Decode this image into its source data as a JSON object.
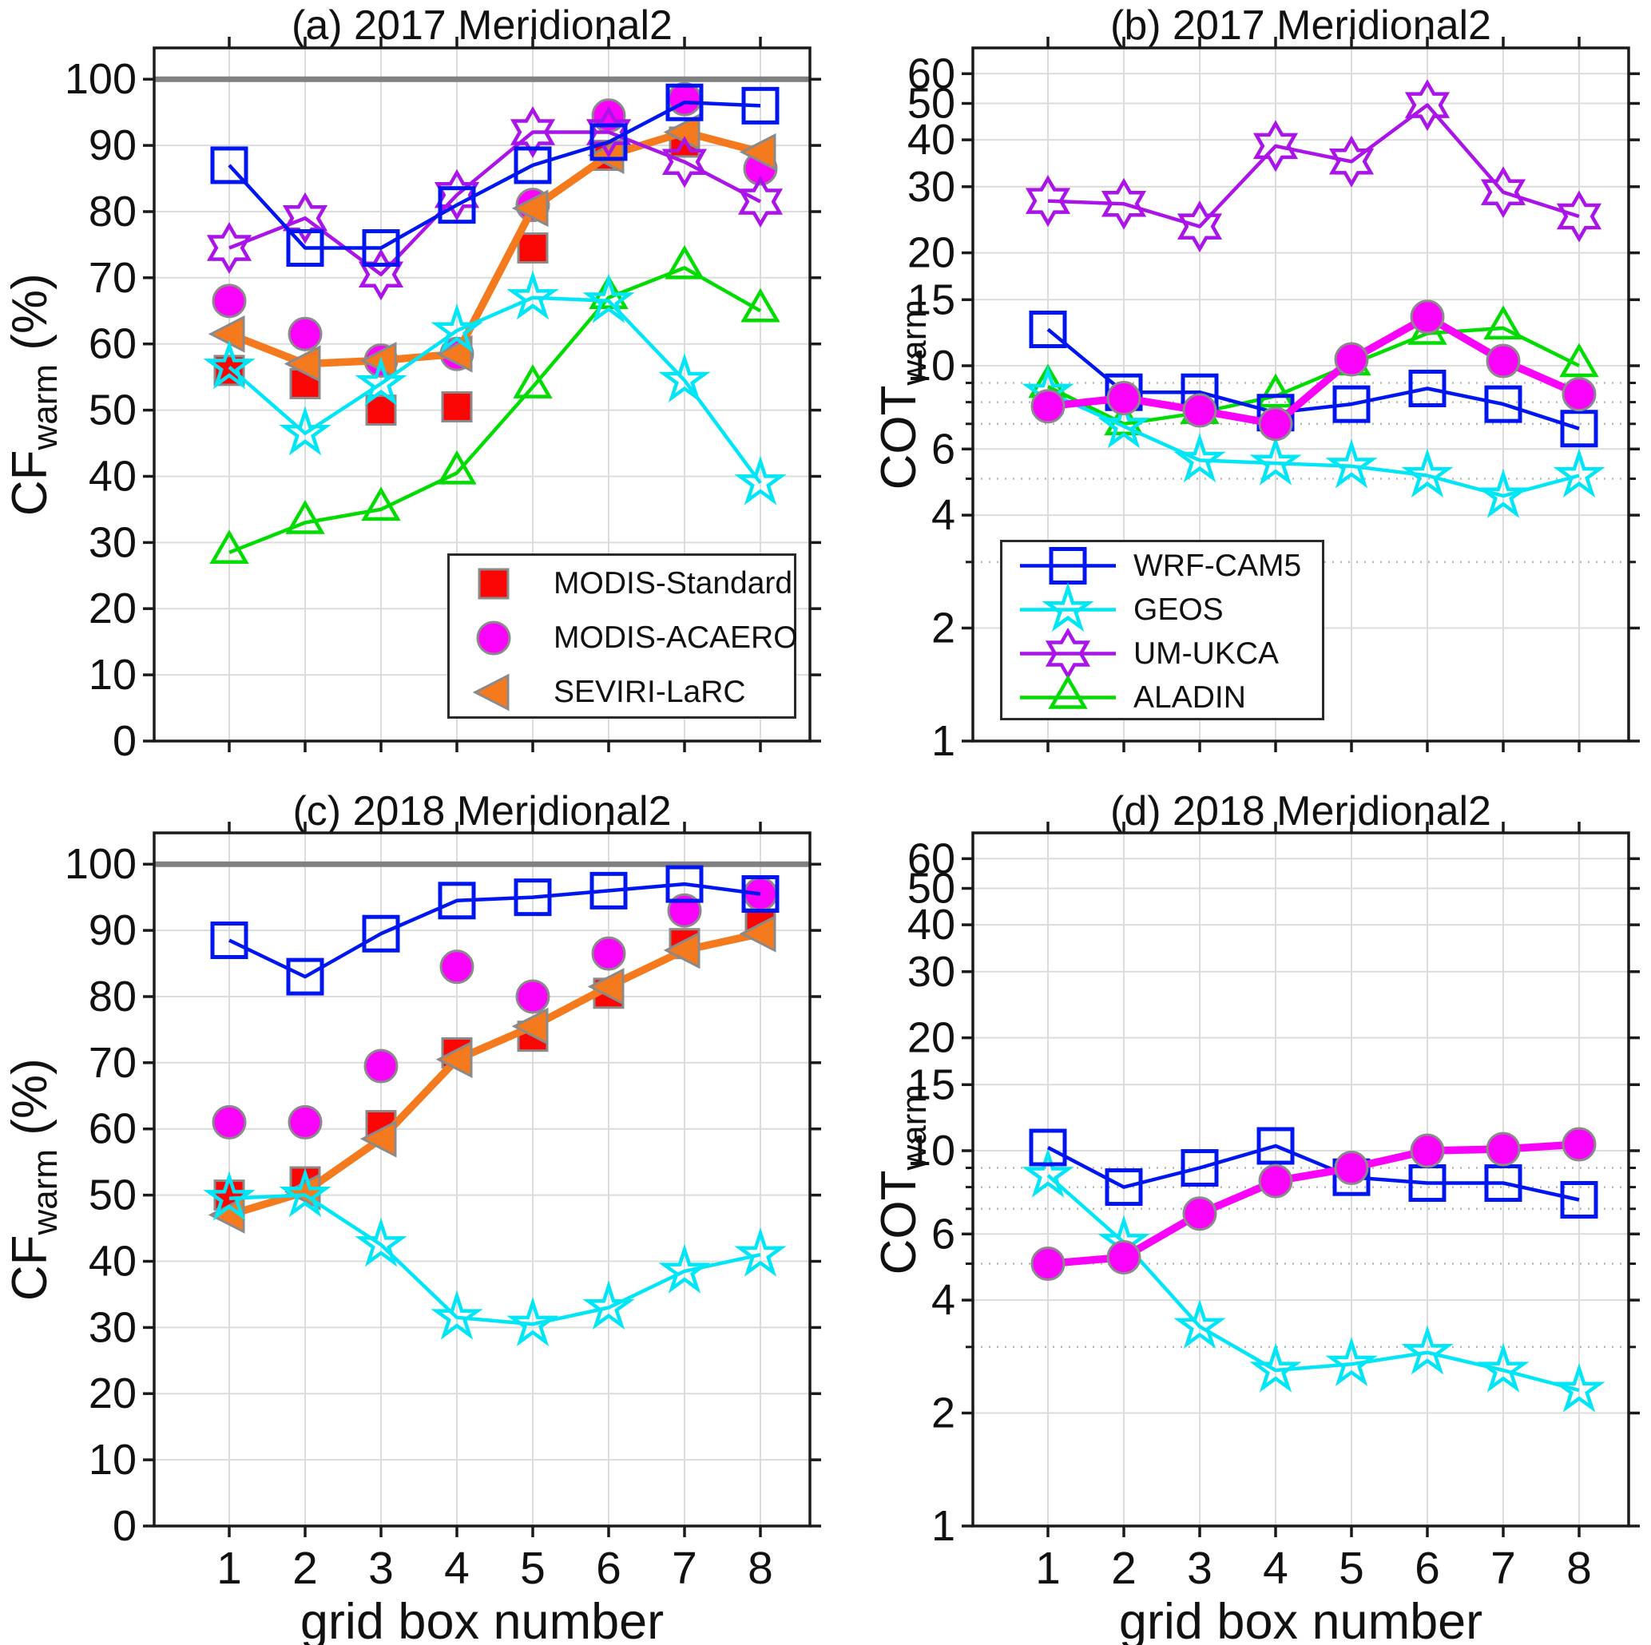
{
  "labels": {
    "xlabel": "grid box number",
    "cf": {
      "main": "CF",
      "sub": "warm",
      "unit": " (%)"
    },
    "cot": {
      "main": "COT",
      "sub": "warm",
      "unit": ""
    }
  },
  "theme": {
    "background": "#ffffff",
    "axis_color": "#1a1a1a",
    "grid_color": "#dcdcdc",
    "minor_grid_color": "#b8b8b8",
    "ref_line_color": "#808080",
    "marker_edge_color": "#8a8a8a",
    "text_color": "#111111"
  },
  "series_styles": {
    "WRF-CAM5": {
      "color": "#0016f0",
      "marker": "square-open",
      "line_width": 4.5
    },
    "GEOS": {
      "color": "#00e6f6",
      "marker": "star5-open",
      "line_width": 4.5
    },
    "UM-UKCA": {
      "color": "#aa14e8",
      "marker": "star6-open",
      "line_width": 4.5
    },
    "ALADIN": {
      "color": "#00dc00",
      "marker": "triangle-up-open",
      "line_width": 4.5
    },
    "MODIS-Standard": {
      "color": "#fb0505",
      "marker": "square-filled",
      "line_width": 0
    },
    "MODIS-ACAERO": {
      "color": "#fb02fb",
      "marker": "circle-filled",
      "line_width": 9.5
    },
    "SEVIRI-LaRC": {
      "color": "#f5791d",
      "marker": "triangle-left-filled",
      "line_width": 9.5
    }
  },
  "legend_a": {
    "items": [
      {
        "label": "MODIS-Standard",
        "series": "MODIS-Standard"
      },
      {
        "label": "MODIS-ACAERO",
        "series": "MODIS-ACAERO"
      },
      {
        "label": "SEVIRI-LaRC",
        "series": "SEVIRI-LaRC"
      }
    ]
  },
  "legend_b": {
    "items": [
      {
        "label": "WRF-CAM5",
        "series": "WRF-CAM5"
      },
      {
        "label": "GEOS",
        "series": "GEOS"
      },
      {
        "label": "UM-UKCA",
        "series": "UM-UKCA"
      },
      {
        "label": "ALADIN",
        "series": "ALADIN"
      }
    ]
  },
  "chart_data": [
    {
      "id": "a",
      "type": "line",
      "title": "(a) 2017 Meridional2",
      "ylabel": "CF_warm (%)",
      "xlabel": "grid box number",
      "yscale": "linear",
      "ylim": [
        0,
        104.73
      ],
      "yticks": [
        0,
        10,
        20,
        30,
        40,
        50,
        60,
        70,
        80,
        90,
        100
      ],
      "grid_major": [
        10,
        20,
        30,
        40,
        50,
        60,
        70,
        80,
        90,
        100
      ],
      "grid_minor": [],
      "ref_line": 100,
      "x": [
        1,
        2,
        3,
        4,
        5,
        6,
        7,
        8
      ],
      "show_xticklabels": false,
      "series": [
        {
          "name": "MODIS-Standard",
          "line": false,
          "values": [
            56,
            54,
            50,
            50.5,
            74.5,
            88.5,
            90.5,
            null
          ]
        },
        {
          "name": "MODIS-ACAERO",
          "line": false,
          "values": [
            66.5,
            61.5,
            57.5,
            58.5,
            81,
            94.5,
            97,
            86.5
          ]
        },
        {
          "name": "SEVIRI-LaRC",
          "line": true,
          "values": [
            61.5,
            57,
            57.5,
            58.5,
            80.5,
            88.5,
            92,
            89
          ]
        },
        {
          "name": "ALADIN",
          "line": true,
          "values": [
            28.5,
            33,
            35,
            40.5,
            53.5,
            67,
            71.5,
            65
          ]
        },
        {
          "name": "GEOS",
          "line": true,
          "values": [
            56.5,
            46.5,
            54,
            62,
            67,
            66.5,
            54.5,
            39
          ]
        },
        {
          "name": "UM-UKCA",
          "line": true,
          "values": [
            74.5,
            79,
            70.5,
            82.5,
            92,
            92,
            87.5,
            81.5
          ]
        },
        {
          "name": "WRF-CAM5",
          "line": true,
          "values": [
            87,
            74.5,
            74.5,
            81,
            87,
            90.5,
            96.5,
            96
          ]
        }
      ]
    },
    {
      "id": "b",
      "type": "line",
      "title": "(b) 2017 Meridional2",
      "ylabel": "COT_warm",
      "xlabel": "grid box number",
      "yscale": "log",
      "ylim": [
        1,
        70.3
      ],
      "yticks": [
        60,
        50,
        40,
        30,
        20,
        15,
        10,
        6,
        4,
        2,
        1
      ],
      "grid_major": [
        60,
        50,
        40,
        30,
        20,
        15,
        10,
        6,
        4,
        2
      ],
      "grid_minor": [
        9,
        8,
        7,
        5,
        3
      ],
      "ref_line": null,
      "x": [
        1,
        2,
        3,
        4,
        5,
        6,
        7,
        8
      ],
      "show_xticklabels": false,
      "series": [
        {
          "name": "ALADIN",
          "line": true,
          "values": [
            8.8,
            7.0,
            7.5,
            8.3,
            10.1,
            12.2,
            12.6,
            10.0
          ]
        },
        {
          "name": "GEOS",
          "line": true,
          "values": [
            8.5,
            6.9,
            5.6,
            5.5,
            5.4,
            5.1,
            4.5,
            5.1
          ]
        },
        {
          "name": "WRF-CAM5",
          "line": true,
          "values": [
            12.5,
            8.5,
            8.5,
            7.5,
            7.9,
            8.7,
            7.9,
            6.8
          ]
        },
        {
          "name": "UM-UKCA",
          "line": true,
          "values": [
            27.5,
            27,
            23.5,
            38.5,
            35,
            49.5,
            29,
            25
          ]
        },
        {
          "name": "MODIS-ACAERO",
          "line": true,
          "values": [
            7.8,
            8.2,
            7.6,
            7.0,
            10.4,
            13.5,
            10.3,
            8.4
          ]
        }
      ]
    },
    {
      "id": "c",
      "type": "line",
      "title": "(c) 2018 Meridional2",
      "ylabel": "CF_warm (%)",
      "xlabel": "grid box number",
      "yscale": "linear",
      "ylim": [
        0,
        104.73
      ],
      "yticks": [
        0,
        10,
        20,
        30,
        40,
        50,
        60,
        70,
        80,
        90,
        100
      ],
      "grid_major": [
        10,
        20,
        30,
        40,
        50,
        60,
        70,
        80,
        90,
        100
      ],
      "grid_minor": [],
      "ref_line": 100,
      "x": [
        1,
        2,
        3,
        4,
        5,
        6,
        7,
        8
      ],
      "show_xticklabels": true,
      "series": [
        {
          "name": "MODIS-Standard",
          "line": false,
          "values": [
            50,
            52,
            60.5,
            71.5,
            74,
            80.5,
            88,
            91
          ]
        },
        {
          "name": "MODIS-ACAERO",
          "line": false,
          "values": [
            61,
            61,
            69.5,
            84.5,
            80,
            86.5,
            93,
            95.5
          ]
        },
        {
          "name": "SEVIRI-LaRC",
          "line": true,
          "values": [
            47,
            50.5,
            58.5,
            70.5,
            75.5,
            81.5,
            87,
            89.5
          ]
        },
        {
          "name": "GEOS",
          "line": true,
          "values": [
            49.5,
            50,
            42.5,
            31.5,
            30.5,
            33,
            38.5,
            41
          ]
        },
        {
          "name": "WRF-CAM5",
          "line": true,
          "values": [
            88.5,
            83,
            89.5,
            94.5,
            95,
            96,
            97,
            95.5
          ]
        }
      ]
    },
    {
      "id": "d",
      "type": "line",
      "title": "(d) 2018 Meridional2",
      "ylabel": "COT_warm",
      "xlabel": "grid box number",
      "yscale": "log",
      "ylim": [
        1,
        70.3
      ],
      "yticks": [
        60,
        50,
        40,
        30,
        20,
        15,
        10,
        6,
        4,
        2,
        1
      ],
      "grid_major": [
        60,
        50,
        40,
        30,
        20,
        15,
        10,
        6,
        4,
        2
      ],
      "grid_minor": [
        9,
        8,
        7,
        5,
        3
      ],
      "ref_line": null,
      "x": [
        1,
        2,
        3,
        4,
        5,
        6,
        7,
        8
      ],
      "show_xticklabels": true,
      "series": [
        {
          "name": "GEOS",
          "line": true,
          "values": [
            8.6,
            5.7,
            3.4,
            2.6,
            2.7,
            2.9,
            2.6,
            2.3
          ]
        },
        {
          "name": "WRF-CAM5",
          "line": true,
          "values": [
            10.2,
            8.0,
            9.0,
            10.3,
            8.5,
            8.2,
            8.2,
            7.4
          ]
        },
        {
          "name": "MODIS-ACAERO",
          "line": true,
          "values": [
            5.0,
            5.2,
            6.8,
            8.3,
            9.0,
            10.0,
            10.1,
            10.4
          ]
        }
      ]
    }
  ]
}
